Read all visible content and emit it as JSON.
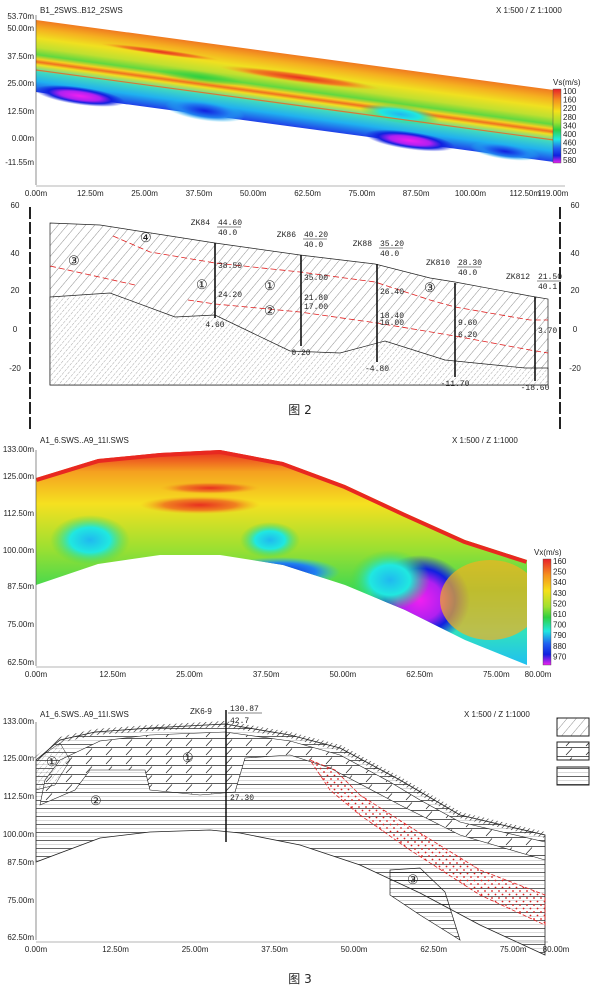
{
  "figure1": {
    "title": "B1_2SWS..B12_2SWS",
    "scale": "X 1:500 / Z 1:1000",
    "y_ticks": [
      "53.70m",
      "50.00m",
      "37.50m",
      "25.00m",
      "12.50m",
      "0.00m",
      "-11.55m"
    ],
    "x_ticks": [
      "0.00m",
      "12.50m",
      "25.00m",
      "37.50m",
      "50.00m",
      "62.50m",
      "75.00m",
      "87.50m",
      "100.00m",
      "112.50m",
      "119.00m"
    ],
    "legend_title": "Vs(m/s)",
    "legend_values": [
      "100",
      "160",
      "220",
      "280",
      "340",
      "400",
      "460",
      "520",
      "580"
    ],
    "colors": [
      "#e8202a",
      "#f0641e",
      "#f5a01e",
      "#f5dc1a",
      "#a8e030",
      "#30d040",
      "#20e8e0",
      "#2080f0",
      "#1020e0",
      "#e020f0"
    ]
  },
  "figure2": {
    "y_ticks": [
      "60",
      "40",
      "20",
      "0",
      "-20"
    ],
    "boreholes": [
      {
        "name": "ZK84",
        "top": "44.60",
        "depth": "40.0",
        "l1": "38.50",
        "l2": "24.20",
        "bottom": "4.60"
      },
      {
        "name": "ZK86",
        "top": "40.20",
        "depth": "40.0",
        "l1": "35.00",
        "l2": "21.80",
        "l3": "17.00",
        "bottom": "0.20"
      },
      {
        "name": "ZK88",
        "top": "35.20",
        "depth": "40.0",
        "l1": "26.40",
        "l2": "18.40",
        "l3": "16.00",
        "bottom": "-4.80"
      },
      {
        "name": "ZK810",
        "top": "28.30",
        "depth": "40.0",
        "l1": "9.60",
        "l2": "6.20",
        "bottom": "-11.70"
      },
      {
        "name": "ZK812",
        "top": "21.50",
        "depth": "40.1",
        "l1": "3.70",
        "bottom": "-18.60"
      }
    ],
    "layers": [
      "③",
      "④",
      "①",
      "①",
      "②",
      "③"
    ],
    "caption": "图 2"
  },
  "figure3": {
    "title": "A1_6.SWS..A9_11I.SWS",
    "scale": "X 1:500 / Z 1:1000",
    "y_ticks": [
      "133.00m",
      "125.00m",
      "112.50m",
      "100.00m",
      "87.50m",
      "75.00m",
      "62.50m"
    ],
    "x_ticks": [
      "0.00m",
      "12.50m",
      "25.00m",
      "37.50m",
      "50.00m",
      "62.50m",
      "75.00m",
      "80.00m"
    ],
    "legend_title": "Vx(m/s)",
    "legend_values": [
      "160",
      "250",
      "340",
      "430",
      "520",
      "610",
      "700",
      "790",
      "880",
      "970"
    ]
  },
  "figure4": {
    "title": "A1_6.SWS..A9_11I.SWS",
    "scale": "X 1:500 / Z 1:1000",
    "borehole": {
      "name": "ZK6-9",
      "top": "130.87",
      "depth": "42.7",
      "level": "27.30"
    },
    "y_ticks": [
      "133.00m",
      "125.00m",
      "112.50m",
      "100.00m",
      "87.50m",
      "75.00m",
      "62.50m"
    ],
    "x_ticks": [
      "0.00m",
      "12.50m",
      "25.00m",
      "37.50m",
      "50.00m",
      "62.50m",
      "75.00m",
      "80.00m"
    ],
    "layers": [
      "①",
      "①",
      "②",
      "③"
    ],
    "caption": "图 3"
  }
}
